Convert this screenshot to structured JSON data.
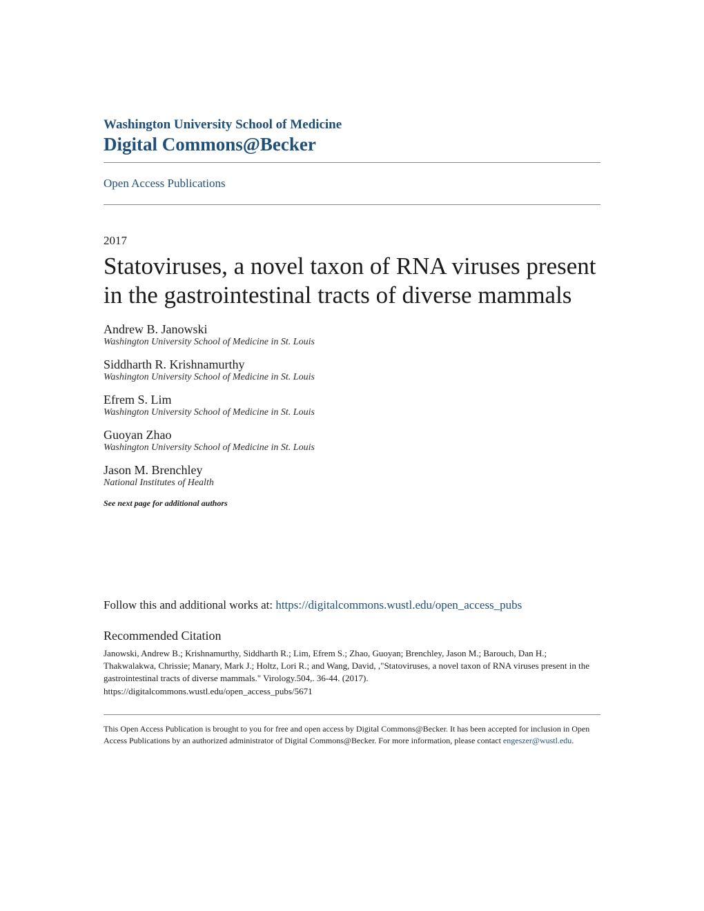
{
  "header": {
    "institution": "Washington University School of Medicine",
    "repository": "Digital Commons@Becker",
    "section_link": "Open Access Publications"
  },
  "article": {
    "year": "2017",
    "title": "Statoviruses, a novel taxon of RNA viruses present in the gastrointestinal tracts of diverse mammals",
    "authors": [
      {
        "name": "Andrew B. Janowski",
        "affiliation": "Washington University School of Medicine in St. Louis"
      },
      {
        "name": "Siddharth R. Krishnamurthy",
        "affiliation": "Washington University School of Medicine in St. Louis"
      },
      {
        "name": "Efrem S. Lim",
        "affiliation": "Washington University School of Medicine in St. Louis"
      },
      {
        "name": "Guoyan Zhao",
        "affiliation": "Washington University School of Medicine in St. Louis"
      },
      {
        "name": "Jason M. Brenchley",
        "affiliation": "National Institutes of Health"
      }
    ],
    "see_next": "See next page for additional authors"
  },
  "follow": {
    "prefix": "Follow this and additional works at: ",
    "link_text": "https://digitalcommons.wustl.edu/open_access_pubs"
  },
  "citation": {
    "heading": "Recommended Citation",
    "body": "Janowski, Andrew B.; Krishnamurthy, Siddharth R.; Lim, Efrem S.; Zhao, Guoyan; Brenchley, Jason M.; Barouch, Dan H.; Thakwalakwa, Chrissie; Manary, Mark J.; Holtz, Lori R.; and Wang, David, ,\"Statoviruses, a novel taxon of RNA viruses present in the gastrointestinal tracts of diverse mammals.\" Virology.504,. 36-44. (2017).\nhttps://digitalcommons.wustl.edu/open_access_pubs/5671"
  },
  "footer": {
    "text_before_link": "This Open Access Publication is brought to you for free and open access by Digital Commons@Becker. It has been accepted for inclusion in Open Access Publications by an authorized administrator of Digital Commons@Becker. For more information, please contact ",
    "link_text": "engeszer@wustl.edu",
    "text_after_link": "."
  },
  "colors": {
    "brand": "#1f4e79",
    "text": "#1a1a1a",
    "rule": "#888888",
    "background": "#ffffff"
  },
  "typography": {
    "institution_fontsize": 19,
    "repository_fontsize": 27,
    "section_link_fontsize": 17,
    "year_fontsize": 17,
    "title_fontsize": 35,
    "author_name_fontsize": 18,
    "author_affil_fontsize": 14,
    "see_next_fontsize": 12,
    "follow_fontsize": 17,
    "citation_heading_fontsize": 18,
    "citation_body_fontsize": 13,
    "footer_fontsize": 12,
    "font_family": "Georgia/Minion serif"
  }
}
